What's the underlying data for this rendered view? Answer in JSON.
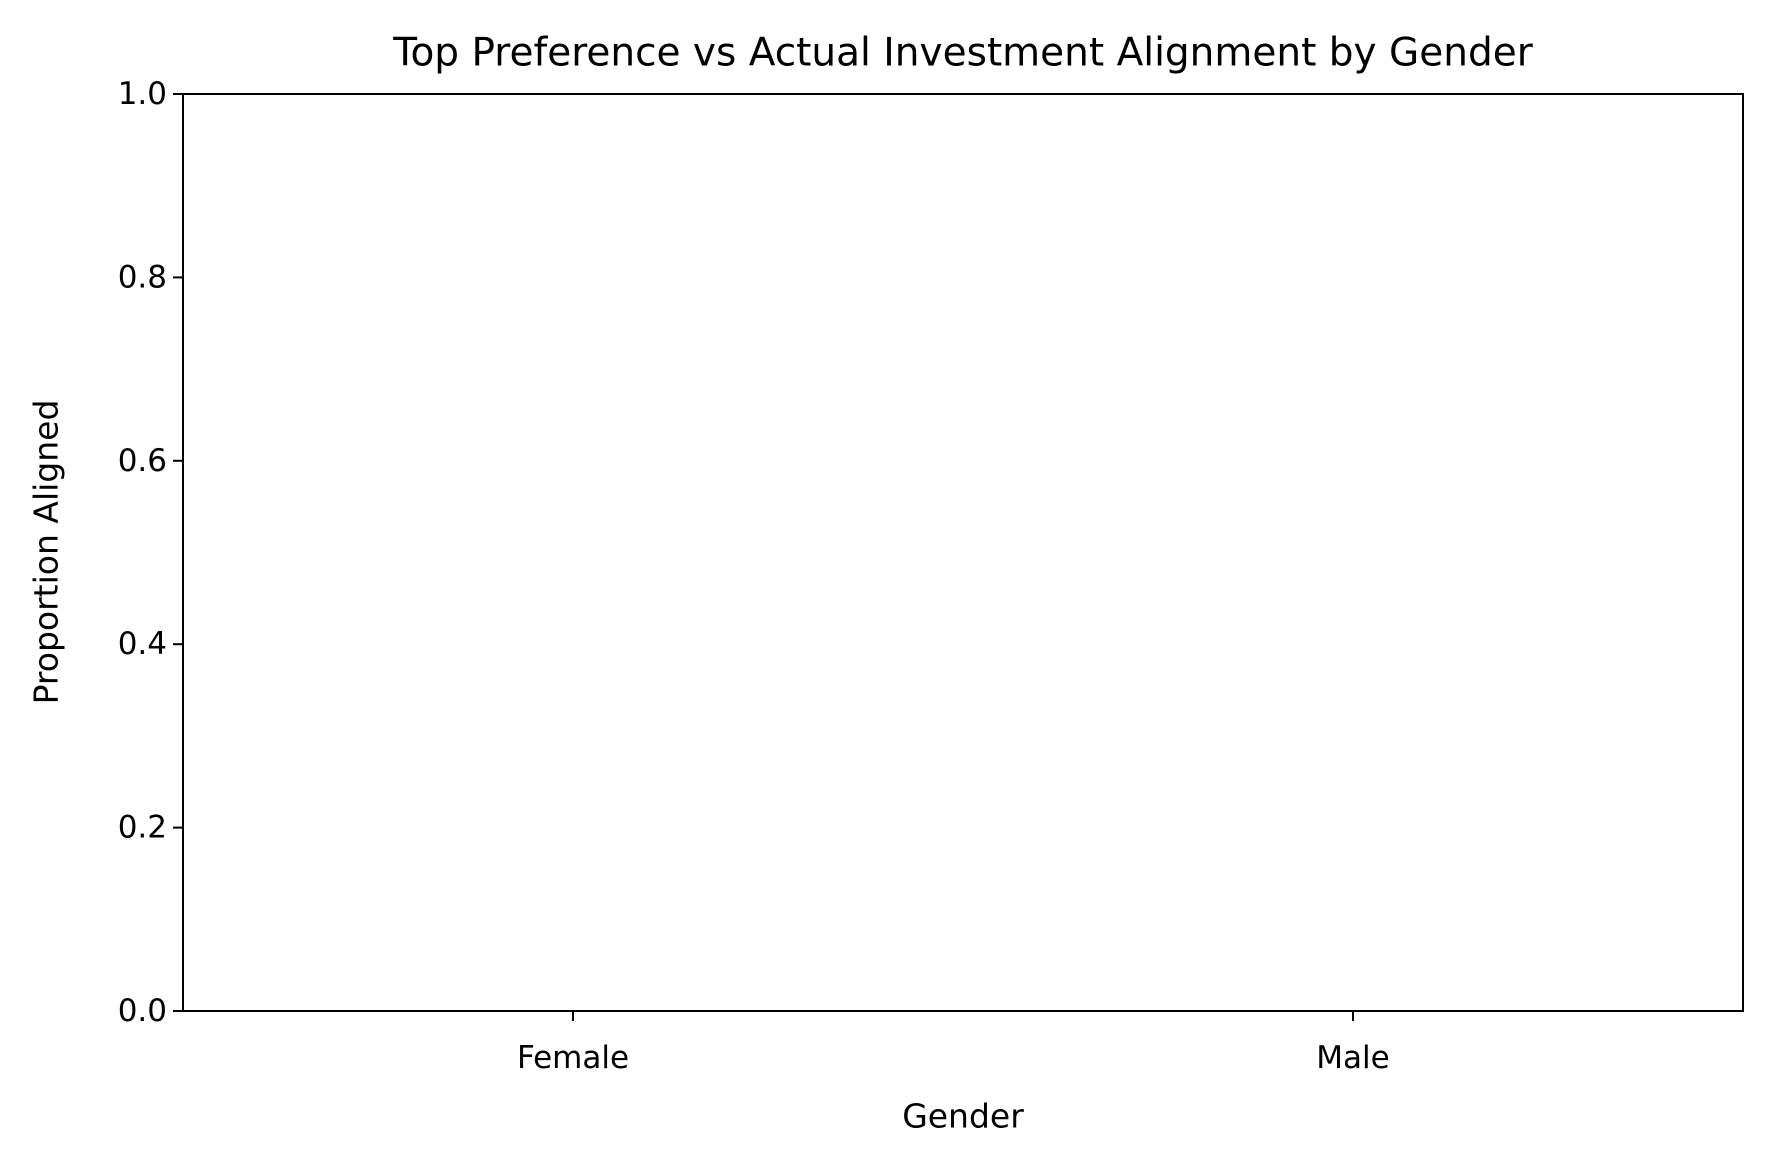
{
  "chart_data": {
    "type": "bar",
    "title": "Top Preference vs Actual Investment Alignment by Gender",
    "xlabel": "Gender",
    "ylabel": "Proportion Aligned",
    "categories": [
      "Female",
      "Male"
    ],
    "values": [
      0.0,
      0.0
    ],
    "ylim": [
      0,
      1
    ],
    "yticks": [
      "0.0",
      "0.2",
      "0.4",
      "0.6",
      "0.8",
      "1.0"
    ],
    "grid": false,
    "legend": "none",
    "bar_color": "#1f77b4"
  }
}
